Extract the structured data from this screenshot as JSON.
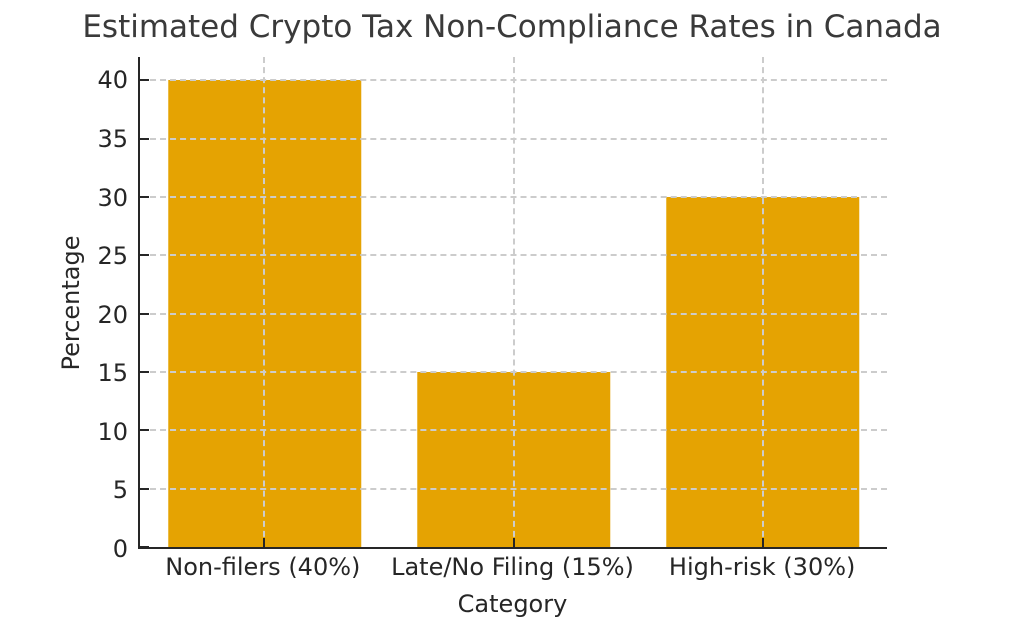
{
  "chart_data": {
    "type": "bar",
    "title": "Estimated Crypto Tax Non-Compliance Rates in Canada",
    "xlabel": "Category",
    "ylabel": "Percentage",
    "categories": [
      "Non-filers (40%)",
      "Late/No Filing (15%)",
      "High-risk (30%)"
    ],
    "values": [
      40,
      15,
      30
    ],
    "ylim": [
      0,
      42
    ],
    "yticks": [
      0,
      5,
      10,
      15,
      20,
      25,
      30,
      35,
      40
    ],
    "bar_color": "#E5A302",
    "grid_color": "#CCCCCC",
    "axis_color": "#262626",
    "title_color": "#3A3A3A",
    "background_color": "#FFFFFF",
    "grid": "dashed gridlines on both axes, drawn above bars",
    "legend": "none",
    "bar_width_fraction": 0.78
  }
}
